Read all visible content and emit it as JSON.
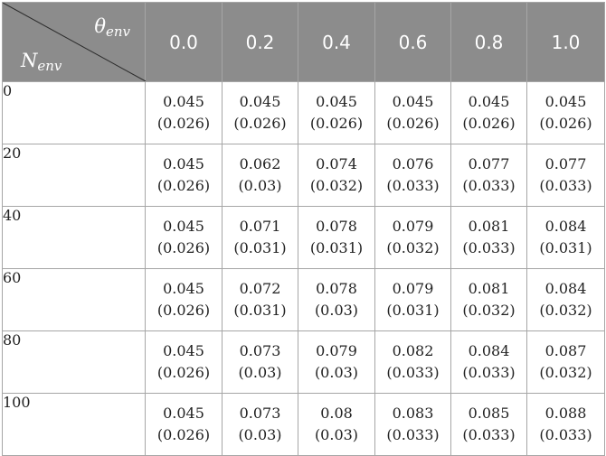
{
  "table": {
    "corner": {
      "theta_base": "θ",
      "theta_sub": "env",
      "n_base": "N",
      "n_sub": "env"
    },
    "columns": [
      "0.0",
      "0.2",
      "0.4",
      "0.6",
      "0.8",
      "1.0"
    ],
    "rows": [
      {
        "n": "0",
        "cells": [
          {
            "v": "0.045",
            "sd": "(0.026)"
          },
          {
            "v": "0.045",
            "sd": "(0.026)"
          },
          {
            "v": "0.045",
            "sd": "(0.026)"
          },
          {
            "v": "0.045",
            "sd": "(0.026)"
          },
          {
            "v": "0.045",
            "sd": "(0.026)"
          },
          {
            "v": "0.045",
            "sd": "(0.026)"
          }
        ]
      },
      {
        "n": "20",
        "cells": [
          {
            "v": "0.045",
            "sd": "(0.026)"
          },
          {
            "v": "0.062",
            "sd": "(0.03)"
          },
          {
            "v": "0.074",
            "sd": "(0.032)"
          },
          {
            "v": "0.076",
            "sd": "(0.033)"
          },
          {
            "v": "0.077",
            "sd": "(0.033)"
          },
          {
            "v": "0.077",
            "sd": "(0.033)"
          }
        ]
      },
      {
        "n": "40",
        "cells": [
          {
            "v": "0.045",
            "sd": "(0.026)"
          },
          {
            "v": "0.071",
            "sd": "(0.031)"
          },
          {
            "v": "0.078",
            "sd": "(0.031)"
          },
          {
            "v": "0.079",
            "sd": "(0.032)"
          },
          {
            "v": "0.081",
            "sd": "(0.033)"
          },
          {
            "v": "0.084",
            "sd": "(0.031)"
          }
        ]
      },
      {
        "n": "60",
        "cells": [
          {
            "v": "0.045",
            "sd": "(0.026)"
          },
          {
            "v": "0.072",
            "sd": "(0.031)"
          },
          {
            "v": "0.078",
            "sd": "(0.03)"
          },
          {
            "v": "0.079",
            "sd": "(0.031)"
          },
          {
            "v": "0.081",
            "sd": "(0.032)"
          },
          {
            "v": "0.084",
            "sd": "(0.032)"
          }
        ]
      },
      {
        "n": "80",
        "cells": [
          {
            "v": "0.045",
            "sd": "(0.026)"
          },
          {
            "v": "0.073",
            "sd": "(0.03)"
          },
          {
            "v": "0.079",
            "sd": "(0.03)"
          },
          {
            "v": "0.082",
            "sd": "(0.033)"
          },
          {
            "v": "0.084",
            "sd": "(0.033)"
          },
          {
            "v": "0.087",
            "sd": "(0.032)"
          }
        ]
      },
      {
        "n": "100",
        "cells": [
          {
            "v": "0.045",
            "sd": "(0.026)"
          },
          {
            "v": "0.073",
            "sd": "(0.03)"
          },
          {
            "v": "0.08",
            "sd": "(0.03)"
          },
          {
            "v": "0.083",
            "sd": "(0.033)"
          },
          {
            "v": "0.085",
            "sd": "(0.033)"
          },
          {
            "v": "0.088",
            "sd": "(0.033)"
          }
        ]
      }
    ]
  }
}
